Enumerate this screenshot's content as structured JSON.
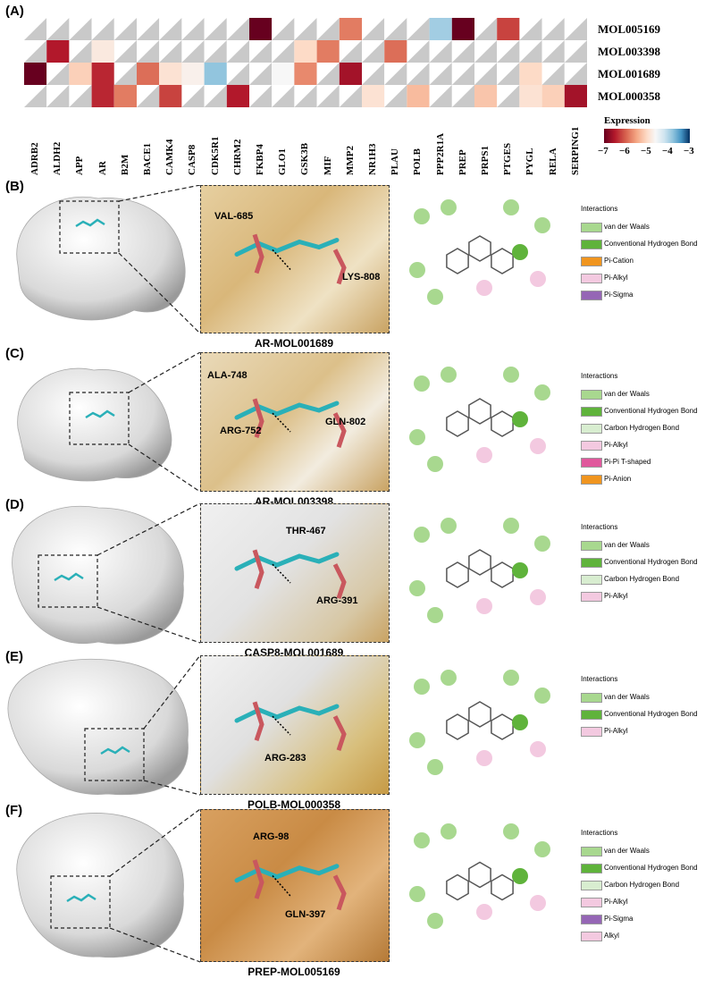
{
  "heatmap": {
    "label": "(A)",
    "rows": [
      "MOL005169",
      "MOL003398",
      "MOL001689",
      "MOL000358"
    ],
    "cols": [
      "ADRB2",
      "ALDH2",
      "APP",
      "AR",
      "B2M",
      "BACE1",
      "CAMK4",
      "CASP8",
      "CDK5R1",
      "CHRM2",
      "FKBP4",
      "GLO1",
      "GSK3B",
      "MIF",
      "MMP2",
      "NR1H3",
      "PLAU",
      "POLB",
      "PPP2R1A",
      "PREP",
      "PRPS1",
      "PTGES",
      "PYGL",
      "RELA",
      "SERPING1"
    ],
    "legend_title": "Expression",
    "legend_ticks": [
      "−7",
      "−6",
      "−5",
      "−4",
      "−3"
    ],
    "colors": {
      "low": "#67001f",
      "mid": "#f7f7f7",
      "high": "#053061"
    },
    "values": [
      [
        null,
        null,
        null,
        null,
        null,
        null,
        null,
        null,
        null,
        null,
        -7,
        null,
        null,
        null,
        -5.8,
        null,
        null,
        null,
        -3.9,
        -7,
        null,
        -6.2,
        null,
        null,
        null
      ],
      [
        null,
        -6.5,
        null,
        -4.8,
        null,
        null,
        null,
        null,
        null,
        null,
        null,
        null,
        -5.0,
        -5.8,
        null,
        null,
        -5.9,
        null,
        null,
        null,
        null,
        null,
        null,
        null,
        null
      ],
      [
        -7,
        null,
        -5.1,
        -6.4,
        null,
        -5.9,
        -4.9,
        -4.7,
        -3.8,
        null,
        null,
        -4.6,
        -5.7,
        null,
        -6.6,
        null,
        null,
        null,
        null,
        null,
        null,
        null,
        -5.0,
        null,
        null
      ],
      [
        null,
        null,
        null,
        -6.4,
        -5.8,
        null,
        -6.2,
        null,
        null,
        -6.5,
        null,
        null,
        null,
        null,
        null,
        -4.9,
        null,
        -5.3,
        null,
        null,
        -5.2,
        null,
        -4.9,
        -5.1,
        -6.6
      ]
    ]
  },
  "panels": [
    {
      "label": "(B)",
      "title": "AR-MOL001689",
      "residues": [
        "VAL-685",
        "LYS-808"
      ],
      "interactions_header": "Interactions",
      "interactions": [
        {
          "name": "van der Waals",
          "color": "#a8d88f"
        },
        {
          "name": "Conventional Hydrogen Bond",
          "color": "#5fb33b"
        },
        {
          "name": "Pi-Cation",
          "color": "#f0951f"
        },
        {
          "name": "Pi-Alkyl",
          "color": "#f3c9e0"
        },
        {
          "name": "Pi-Sigma",
          "color": "#9566b5"
        }
      ]
    },
    {
      "label": "(C)",
      "title": "AR-MOL003398",
      "residues": [
        "ALA-748",
        "ARG-752",
        "GLN-802"
      ],
      "interactions_header": "Interactions",
      "interactions": [
        {
          "name": "van der Waals",
          "color": "#a8d88f"
        },
        {
          "name": "Conventional Hydrogen Bond",
          "color": "#5fb33b"
        },
        {
          "name": "Carbon Hydrogen Bond",
          "color": "#d8edd0"
        },
        {
          "name": "Pi-Alkyl",
          "color": "#f3c9e0"
        },
        {
          "name": "Pi-Pi T-shaped",
          "color": "#e0589c"
        },
        {
          "name": "Pi-Anion",
          "color": "#f0951f"
        }
      ]
    },
    {
      "label": "(D)",
      "title": "CASP8-MOL001689",
      "residues": [
        "THR-467",
        "ARG-391"
      ],
      "interactions_header": "Interactions",
      "interactions": [
        {
          "name": "van der Waals",
          "color": "#a8d88f"
        },
        {
          "name": "Conventional Hydrogen Bond",
          "color": "#5fb33b"
        },
        {
          "name": "Carbon Hydrogen Bond",
          "color": "#d8edd0"
        },
        {
          "name": "Pi-Alkyl",
          "color": "#f3c9e0"
        }
      ]
    },
    {
      "label": "(E)",
      "title": "POLB-MOL000358",
      "residues": [
        "ARG-283"
      ],
      "interactions_header": "Interactions",
      "interactions": [
        {
          "name": "van der Waals",
          "color": "#a8d88f"
        },
        {
          "name": "Conventional Hydrogen Bond",
          "color": "#5fb33b"
        },
        {
          "name": "Pi-Alkyl",
          "color": "#f3c9e0"
        }
      ]
    },
    {
      "label": "(F)",
      "title": "PREP-MOL005169",
      "residues": [
        "ARG-98",
        "GLN-397"
      ],
      "interactions_header": "Interactions",
      "interactions": [
        {
          "name": "van der Waals",
          "color": "#a8d88f"
        },
        {
          "name": "Conventional Hydrogen Bond",
          "color": "#5fb33b"
        },
        {
          "name": "Carbon Hydrogen Bond",
          "color": "#d8edd0"
        },
        {
          "name": "Pi-Alkyl",
          "color": "#f3c9e0"
        },
        {
          "name": "Pi-Sigma",
          "color": "#9566b5"
        },
        {
          "name": "Alkyl",
          "color": "#f3c9e0"
        }
      ]
    }
  ]
}
